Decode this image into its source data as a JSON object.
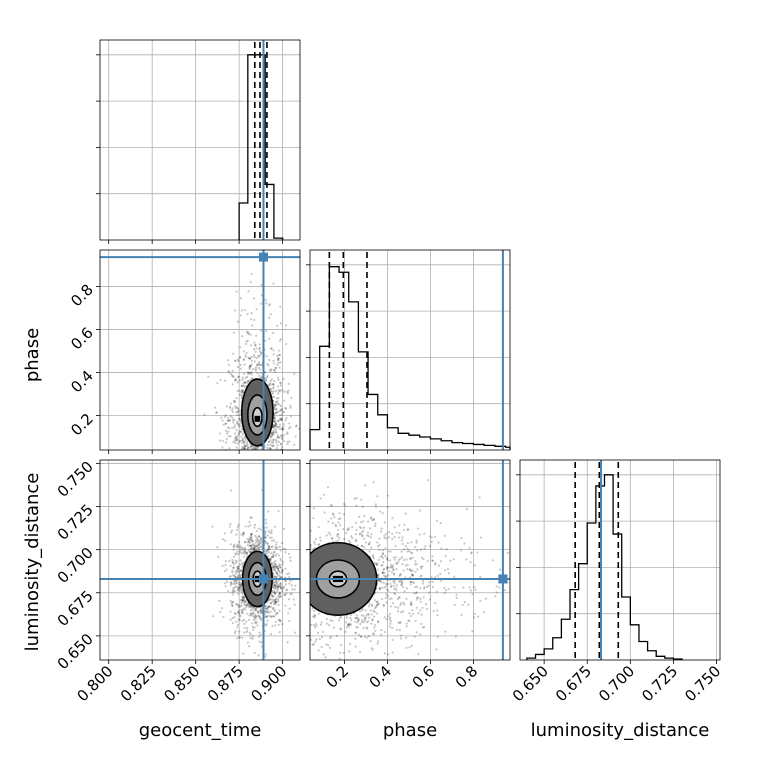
{
  "chart_data": {
    "type": "corner",
    "parameters": [
      "geocent_time",
      "phase",
      "luminosity_distance"
    ],
    "axis_labels": {
      "bottom": [
        "geocent_time",
        "phase",
        "luminosity_distance"
      ],
      "left": [
        "",
        "phase",
        "luminosity_distance"
      ]
    },
    "ranges": {
      "geocent_time": [
        0.795,
        0.91
      ],
      "phase": [
        0.04,
        0.97
      ],
      "luminosity_distance": [
        0.636,
        0.752
      ]
    },
    "ticks": {
      "geocent_time": [
        "0.800",
        "0.825",
        "0.850",
        "0.875",
        "0.900"
      ],
      "phase": [
        "0.2",
        "0.4",
        "0.6",
        "0.8"
      ],
      "luminosity_distance": [
        "0.650",
        "0.675",
        "0.700",
        "0.725",
        "0.750"
      ]
    },
    "truths": {
      "geocent_time": 0.889,
      "phase": 0.937,
      "luminosity_distance": 0.683
    },
    "quantiles": {
      "geocent_time": [
        0.884,
        0.887,
        0.891
      ],
      "phase": [
        0.13,
        0.195,
        0.305
      ],
      "luminosity_distance": [
        0.668,
        0.682,
        0.693
      ]
    },
    "histograms": {
      "geocent_time": {
        "bin_edges": [
          0.875,
          0.88,
          0.885,
          0.89,
          0.895,
          0.9
        ],
        "counts": [
          0.2,
          1.0,
          1.0,
          0.3,
          0.01
        ]
      },
      "phase": {
        "bin_edges": [
          0.04,
          0.085,
          0.13,
          0.175,
          0.22,
          0.265,
          0.31,
          0.355,
          0.4,
          0.45,
          0.5,
          0.55,
          0.6,
          0.65,
          0.7,
          0.75,
          0.8,
          0.85,
          0.9,
          0.95,
          0.97
        ],
        "counts": [
          0.11,
          0.56,
          0.99,
          0.96,
          0.8,
          0.53,
          0.3,
          0.19,
          0.12,
          0.09,
          0.08,
          0.07,
          0.06,
          0.05,
          0.04,
          0.035,
          0.03,
          0.025,
          0.02,
          0.015
        ]
      },
      "luminosity_distance": {
        "bin_edges": [
          0.64,
          0.645,
          0.65,
          0.655,
          0.66,
          0.665,
          0.67,
          0.675,
          0.68,
          0.685,
          0.69,
          0.695,
          0.7,
          0.705,
          0.71,
          0.715,
          0.72,
          0.725,
          0.73
        ],
        "counts": [
          0.01,
          0.03,
          0.06,
          0.12,
          0.22,
          0.38,
          0.52,
          0.74,
          0.94,
          1.0,
          0.68,
          0.34,
          0.19,
          0.1,
          0.05,
          0.02,
          0.01,
          0.005
        ]
      }
    },
    "hist_ylim": {
      "geocent_time": [
        0,
        1.08
      ],
      "phase": [
        0,
        1.08
      ],
      "luminosity_distance": [
        0,
        1.08
      ]
    },
    "contours": {
      "phase_vs_geocent_time": {
        "x": "geocent_time",
        "y": "phase",
        "center": [
          0.8855,
          0.185
        ],
        "levels": [
          {
            "sx": 0.0027,
            "sy": 0.035
          },
          {
            "sx": 0.0055,
            "sy": 0.075
          },
          {
            "sx": 0.009,
            "sy": 0.125
          }
        ],
        "skew_up": 0.4
      },
      "luminosity_distance_vs_geocent_time": {
        "x": "geocent_time",
        "y": "luminosity_distance",
        "center": [
          0.8855,
          0.683
        ],
        "levels": [
          {
            "sx": 0.0025,
            "sy": 0.0045
          },
          {
            "sx": 0.005,
            "sy": 0.0095
          },
          {
            "sx": 0.0085,
            "sy": 0.016
          }
        ],
        "skew_up": 0.0
      },
      "luminosity_distance_vs_phase": {
        "x": "phase",
        "y": "luminosity_distance",
        "center": [
          0.17,
          0.683
        ],
        "levels": [
          {
            "sx": 0.04,
            "sy": 0.0045
          },
          {
            "sx": 0.1,
            "sy": 0.011
          },
          {
            "sx": 0.18,
            "sy": 0.021
          }
        ],
        "skew_up": 0.0
      }
    },
    "grid": true,
    "colors": {
      "truth": "#4682b4",
      "hist_line": "#000000",
      "quantile_line": "#000000",
      "density": "#000000",
      "grid": "#b0b0b0"
    }
  }
}
